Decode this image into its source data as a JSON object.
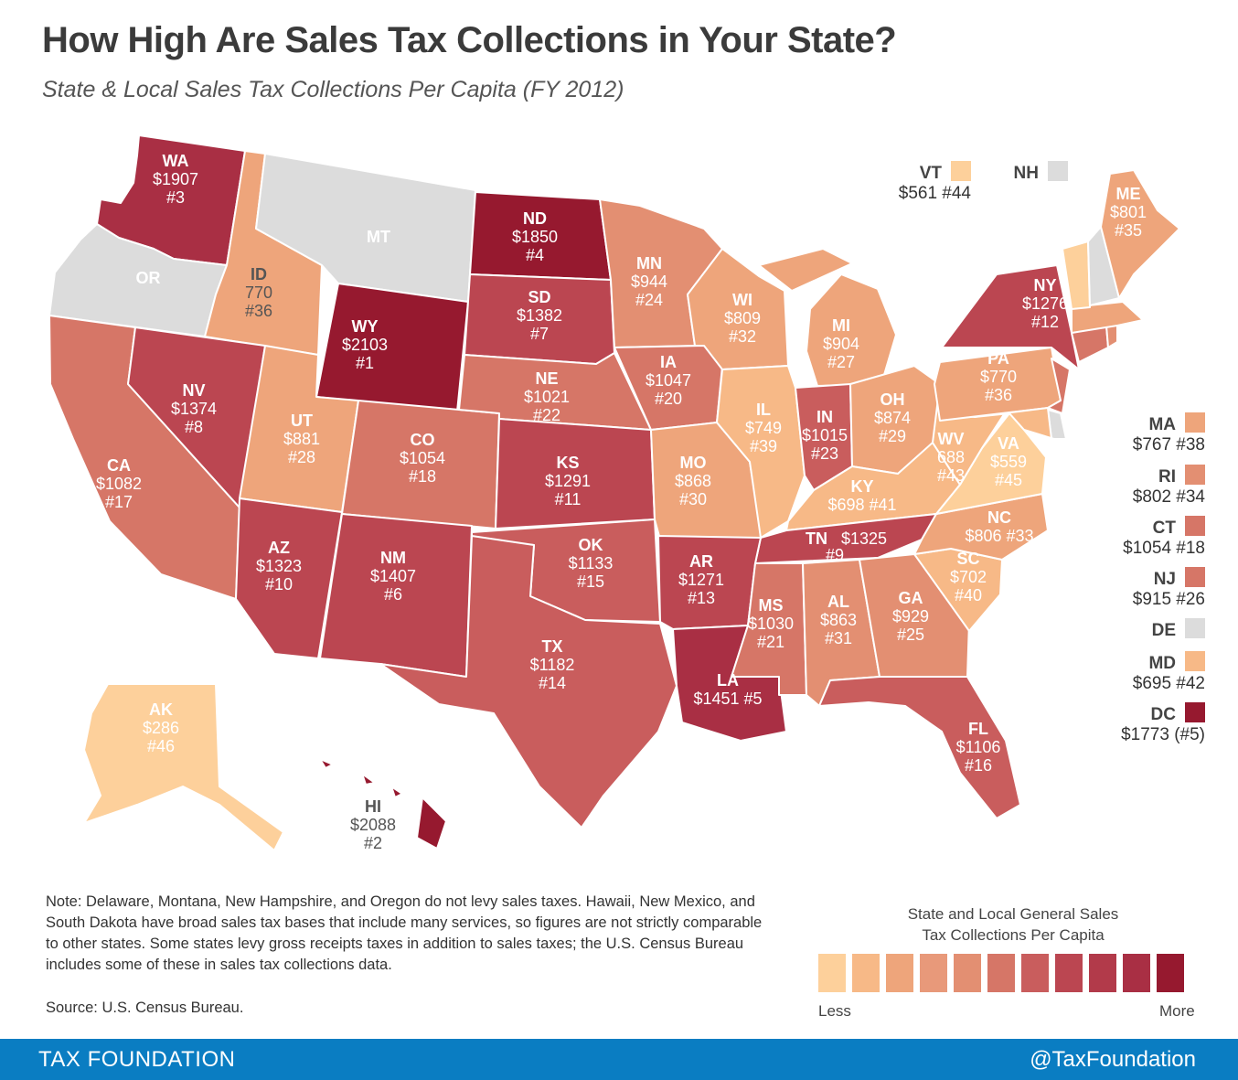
{
  "title": "How High Are Sales Tax Collections in Your State?",
  "subtitle": "State & Local Sales Tax Collections Per Capita (FY 2012)",
  "colors": {
    "c0": "#dcdcdc",
    "c1": "#fdd09b",
    "c2": "#f7b987",
    "c3": "#eea57b",
    "c4": "#e38f72",
    "c5": "#d67667",
    "c6": "#c95d5d",
    "c7": "#bb4651",
    "c8": "#a92f44",
    "c9": "#96192f",
    "border": "#ffffff"
  },
  "states": {
    "WA": {
      "abbr": "WA",
      "value": "$1907",
      "rank": "#3"
    },
    "OR": {
      "abbr": "OR"
    },
    "MT": {
      "abbr": "MT"
    },
    "ID": {
      "abbr": "ID",
      "value": "770",
      "rank": "#36"
    },
    "WY": {
      "abbr": "WY",
      "value": "$2103",
      "rank": "#1"
    },
    "ND": {
      "abbr": "ND",
      "value": "$1850",
      "rank": "#4"
    },
    "SD": {
      "abbr": "SD",
      "value": "$1382",
      "rank": "#7"
    },
    "MN": {
      "abbr": "MN",
      "value": "$944",
      "rank": "#24"
    },
    "WI": {
      "abbr": "WI",
      "value": "$809",
      "rank": "#32"
    },
    "MI": {
      "abbr": "MI",
      "value": "$904",
      "rank": "#27"
    },
    "NY": {
      "abbr": "NY",
      "value": "$1276",
      "rank": "#12"
    },
    "ME": {
      "abbr": "ME",
      "value": "$801",
      "rank": "#35"
    },
    "CA": {
      "abbr": "CA",
      "value": "$1082",
      "rank": "#17"
    },
    "NV": {
      "abbr": "NV",
      "value": "$1374",
      "rank": "#8"
    },
    "UT": {
      "abbr": "UT",
      "value": "$881",
      "rank": "#28"
    },
    "CO": {
      "abbr": "CO",
      "value": "$1054",
      "rank": "#18"
    },
    "NE": {
      "abbr": "NE",
      "value": "$1021",
      "rank": "#22"
    },
    "IA": {
      "abbr": "IA",
      "value": "$1047",
      "rank": "#20"
    },
    "IL": {
      "abbr": "IL",
      "value": "$749",
      "rank": "#39"
    },
    "IN": {
      "abbr": "IN",
      "value": "$1015",
      "rank": "#23"
    },
    "OH": {
      "abbr": "OH",
      "value": "$874",
      "rank": "#29"
    },
    "PA": {
      "abbr": "PA",
      "value": "$770",
      "rank": "#36"
    },
    "WV": {
      "abbr": "WV",
      "value": "688",
      "rank": "#43"
    },
    "VA": {
      "abbr": "VA",
      "value": "$559",
      "rank": "#45"
    },
    "KS": {
      "abbr": "KS",
      "value": "$1291",
      "rank": "#11"
    },
    "MO": {
      "abbr": "MO",
      "value": "$868",
      "rank": "#30"
    },
    "KY": {
      "abbr": "KY",
      "line": "$698 #41"
    },
    "AZ": {
      "abbr": "AZ",
      "value": "$1323",
      "rank": "#10"
    },
    "NM": {
      "abbr": "NM",
      "value": "$1407",
      "rank": "#6"
    },
    "OK": {
      "abbr": "OK",
      "value": "$1133",
      "rank": "#15"
    },
    "AR": {
      "abbr": "AR",
      "value": "$1271",
      "rank": "#13"
    },
    "TN": {
      "abbr": "TN",
      "value": "$1325",
      "rank": "#9"
    },
    "NC": {
      "abbr": "NC",
      "line": "$806 #33"
    },
    "SC": {
      "abbr": "SC",
      "value": "$702",
      "rank": "#40"
    },
    "TX": {
      "abbr": "TX",
      "value": "$1182",
      "rank": "#14"
    },
    "MS": {
      "abbr": "MS",
      "value": "$1030",
      "rank": "#21"
    },
    "AL": {
      "abbr": "AL",
      "value": "$863",
      "rank": "#31"
    },
    "GA": {
      "abbr": "GA",
      "value": "$929",
      "rank": "#25"
    },
    "LA": {
      "abbr": "LA",
      "line": "$1451 #5"
    },
    "FL": {
      "abbr": "FL",
      "value": "$1106",
      "rank": "#16"
    },
    "AK": {
      "abbr": "AK",
      "value": "$286",
      "rank": "#46"
    },
    "HI": {
      "abbr": "HI",
      "value": "$2088",
      "rank": "#2"
    }
  },
  "callouts": {
    "VT": {
      "abbr": "VT",
      "line": "$561 #44"
    },
    "NH": {
      "abbr": "NH"
    },
    "MA": {
      "abbr": "MA",
      "line": "$767 #38"
    },
    "RI": {
      "abbr": "RI",
      "line": "$802 #34"
    },
    "CT": {
      "abbr": "CT",
      "line": "$1054 #18"
    },
    "NJ": {
      "abbr": "NJ",
      "line": "$915 #26"
    },
    "DE": {
      "abbr": "DE"
    },
    "MD": {
      "abbr": "MD",
      "line": "$695 #42"
    },
    "DC": {
      "abbr": "DC",
      "line": "$1773 (#5)"
    }
  },
  "note": "Note: Delaware, Montana, New Hampshire, and Oregon do not levy sales taxes. Hawaii, New Mexico, and South Dakota have broad sales tax bases that include many services, so figures are not strictly comparable to other states. Some states levy gross receipts taxes in addition to sales taxes; the U.S. Census Bureau includes some of these in sales tax collections data.",
  "source": "Source: U.S. Census Bureau.",
  "legend": {
    "title_line1": "State and Local General Sales",
    "title_line2": "Tax Collections Per Capita",
    "less": "Less",
    "more": "More",
    "scale": [
      "#fdd09b",
      "#f7b987",
      "#eea57b",
      "#e8997a",
      "#e38f72",
      "#d67667",
      "#c95d5d",
      "#bb4651",
      "#b23a4a",
      "#a92f44",
      "#96192f"
    ]
  },
  "footer": {
    "brand": "TAX FOUNDATION",
    "handle": "@TaxFoundation"
  }
}
